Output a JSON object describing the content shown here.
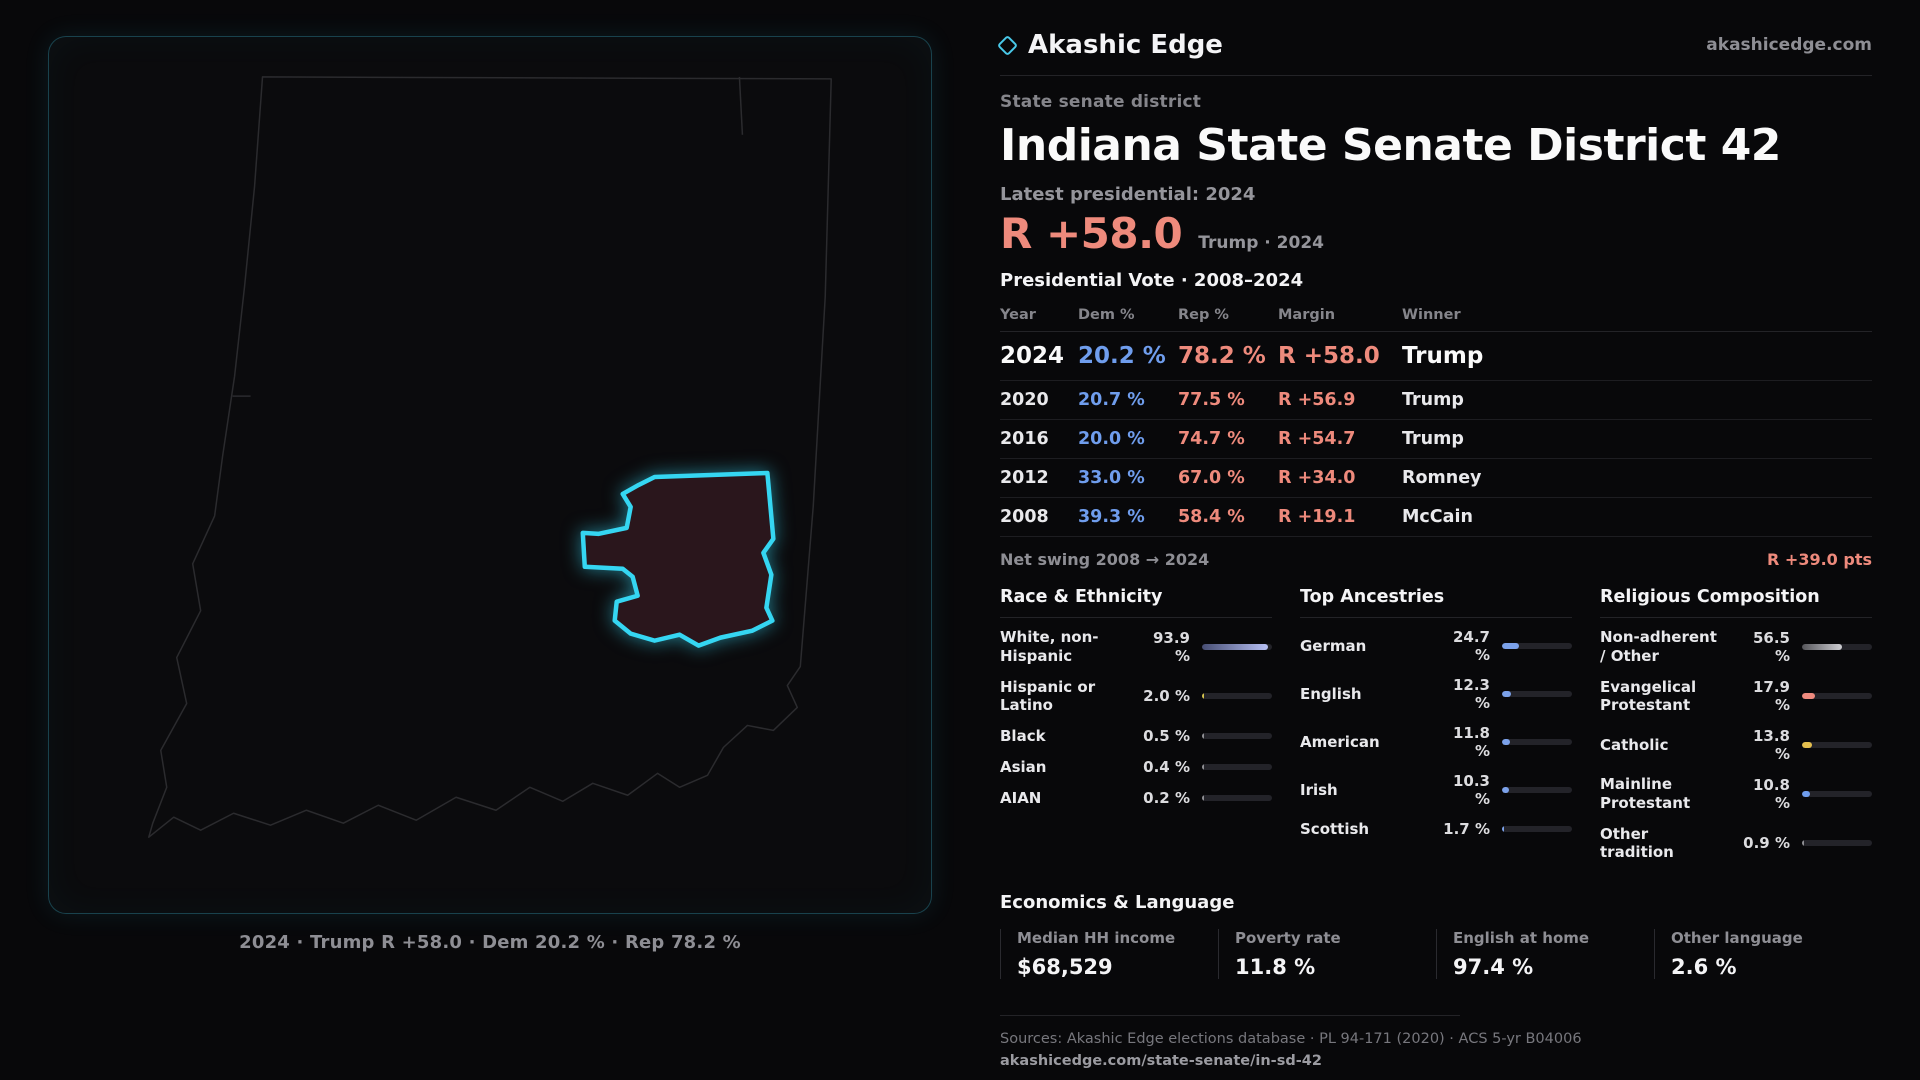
{
  "brand": {
    "name": "Akashic Edge",
    "site": "akashicedge.com"
  },
  "header": {
    "category": "State senate district",
    "title": "Indiana State Senate District 42",
    "latest": "Latest presidential: 2024",
    "margin": "R +58.0",
    "margin_context": "Trump · 2024"
  },
  "map": {
    "caption": "2024 · Trump R +58.0 · Dem 20.2 % · Rep 78.2 %"
  },
  "vote": {
    "title": "Presidential Vote · 2008–2024",
    "columns": [
      "Year",
      "Dem %",
      "Rep %",
      "Margin",
      "Winner"
    ],
    "rows": [
      {
        "year": "2024",
        "dem": "20.2 %",
        "rep": "78.2 %",
        "margin": "R +58.0",
        "winner": "Trump"
      },
      {
        "year": "2020",
        "dem": "20.7 %",
        "rep": "77.5 %",
        "margin": "R +56.9",
        "winner": "Trump"
      },
      {
        "year": "2016",
        "dem": "20.0 %",
        "rep": "74.7 %",
        "margin": "R +54.7",
        "winner": "Trump"
      },
      {
        "year": "2012",
        "dem": "33.0 %",
        "rep": "67.0 %",
        "margin": "R +34.0",
        "winner": "Romney"
      },
      {
        "year": "2008",
        "dem": "39.3 %",
        "rep": "58.4 %",
        "margin": "R +19.1",
        "winner": "McCain"
      }
    ],
    "net_swing_label": "Net swing 2008 → 2024",
    "net_swing_value": "R +39.0 pts"
  },
  "race": {
    "title": "Race & Ethnicity",
    "items": [
      {
        "label": "White, non-Hispanic",
        "value": "93.9 %",
        "pct": 93.9,
        "color": "linear-gradient(90deg,#474e74,#b7c0f4)"
      },
      {
        "label": "Hispanic or Latino",
        "value": "2.0 %",
        "pct": 2.0,
        "color": "#d4c24e"
      },
      {
        "label": "Black",
        "value": "0.5 %",
        "pct": 0.5,
        "color": "#8f8f94"
      },
      {
        "label": "Asian",
        "value": "0.4 %",
        "pct": 0.4,
        "color": "#8f8f94"
      },
      {
        "label": "AIAN",
        "value": "0.2 %",
        "pct": 0.2,
        "color": "#8f8f94"
      }
    ]
  },
  "ancestries": {
    "title": "Top Ancestries",
    "items": [
      {
        "label": "German",
        "value": "24.7 %",
        "pct": 24.7,
        "color": "#7ba1ea"
      },
      {
        "label": "English",
        "value": "12.3 %",
        "pct": 12.3,
        "color": "#7ba1ea"
      },
      {
        "label": "American",
        "value": "11.8 %",
        "pct": 11.8,
        "color": "#7ba1ea"
      },
      {
        "label": "Irish",
        "value": "10.3 %",
        "pct": 10.3,
        "color": "#7ba1ea"
      },
      {
        "label": "Scottish",
        "value": "1.7 %",
        "pct": 1.7,
        "color": "#7ba1ea"
      }
    ]
  },
  "religion": {
    "title": "Religious Composition",
    "items": [
      {
        "label": "Non-adherent / Other",
        "value": "56.5 %",
        "pct": 56.5,
        "color": "linear-gradient(90deg,#55555a,#cfcfd4)"
      },
      {
        "label": "Evangelical Protestant",
        "value": "17.9 %",
        "pct": 17.9,
        "color": "#ef8a7e"
      },
      {
        "label": "Catholic",
        "value": "13.8 %",
        "pct": 13.8,
        "color": "#e4bf4e"
      },
      {
        "label": "Mainline Protestant",
        "value": "10.8 %",
        "pct": 10.8,
        "color": "#6f9ded"
      },
      {
        "label": "Other tradition",
        "value": "0.9 %",
        "pct": 0.9,
        "color": "#8f8f94"
      }
    ]
  },
  "economics": {
    "title": "Economics & Language",
    "stats": [
      {
        "label": "Median HH income",
        "value": "$68,529"
      },
      {
        "label": "Poverty rate",
        "value": "11.8 %"
      },
      {
        "label": "English at home",
        "value": "97.4 %"
      },
      {
        "label": "Other language",
        "value": "2.6 %"
      }
    ]
  },
  "footer": {
    "sources": "Sources: Akashic Edge elections database · PL 94-171 (2020) · ACS 5-yr B04006",
    "permalink": "akashicedge.com/state-senate/in-sd-42"
  },
  "colors": {
    "accent_cyan": "#35d6f2",
    "rep_red": "#ee8a7c",
    "dem_blue": "#6f9ded"
  },
  "chart_data": [
    {
      "type": "table",
      "title": "Presidential Vote · 2008–2024",
      "columns": [
        "Year",
        "Dem %",
        "Rep %",
        "Margin",
        "Winner"
      ],
      "rows": [
        [
          "2024",
          20.2,
          78.2,
          "R +58.0",
          "Trump"
        ],
        [
          "2020",
          20.7,
          77.5,
          "R +56.9",
          "Trump"
        ],
        [
          "2016",
          20.0,
          74.7,
          "R +54.7",
          "Trump"
        ],
        [
          "2012",
          33.0,
          67.0,
          "R +34.0",
          "Romney"
        ],
        [
          "2008",
          39.3,
          58.4,
          "R +19.1",
          "McCain"
        ]
      ],
      "annotations": [
        "Net swing 2008 → 2024: R +39.0 pts",
        "Latest presidential 2024: R +58.0 Trump"
      ]
    },
    {
      "type": "bar",
      "title": "Race & Ethnicity",
      "categories": [
        "White, non-Hispanic",
        "Hispanic or Latino",
        "Black",
        "Asian",
        "AIAN"
      ],
      "values": [
        93.9,
        2.0,
        0.5,
        0.4,
        0.2
      ],
      "unit": "%",
      "xlim": [
        0,
        100
      ]
    },
    {
      "type": "bar",
      "title": "Top Ancestries",
      "categories": [
        "German",
        "English",
        "American",
        "Irish",
        "Scottish"
      ],
      "values": [
        24.7,
        12.3,
        11.8,
        10.3,
        1.7
      ],
      "unit": "%",
      "xlim": [
        0,
        100
      ]
    },
    {
      "type": "bar",
      "title": "Religious Composition",
      "categories": [
        "Non-adherent / Other",
        "Evangelical Protestant",
        "Catholic",
        "Mainline Protestant",
        "Other tradition"
      ],
      "values": [
        56.5,
        17.9,
        13.8,
        10.8,
        0.9
      ],
      "unit": "%",
      "xlim": [
        0,
        100
      ]
    },
    {
      "type": "bar",
      "title": "Economics & Language",
      "categories": [
        "Median HH income",
        "Poverty rate",
        "English at home",
        "Other language"
      ],
      "values": [
        68529,
        11.8,
        97.4,
        2.6
      ]
    }
  ]
}
